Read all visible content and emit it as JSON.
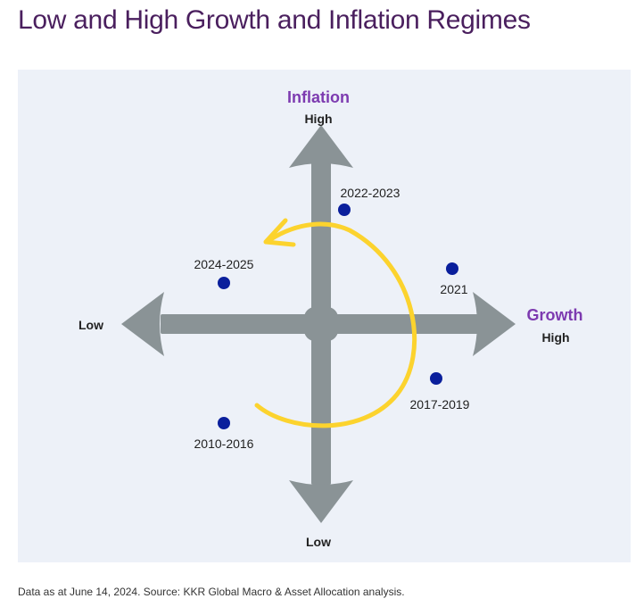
{
  "title": "Low and High Growth and Inflation Regimes",
  "diagram": {
    "y_axis": {
      "name": "Inflation",
      "high_label": "High",
      "low_label": "Low"
    },
    "x_axis": {
      "name": "Growth",
      "high_label": "High",
      "low_label": "Low"
    },
    "periods": [
      {
        "label": "2022-2023",
        "growth": "high",
        "inflation": "high"
      },
      {
        "label": "2021",
        "growth": "high",
        "inflation": "high"
      },
      {
        "label": "2024-2025",
        "growth": "low",
        "inflation": "high"
      },
      {
        "label": "2017-2019",
        "growth": "high",
        "inflation": "low"
      },
      {
        "label": "2010-2016",
        "growth": "low",
        "inflation": "low"
      }
    ],
    "cycle_direction": "counterclockwise"
  },
  "footnote": "Data as at June 14, 2024. Source: KKR Global Macro & Asset Allocation analysis.",
  "colors": {
    "title": "#4a1f5e",
    "panel_background": "#edf1f8",
    "axis_arrow": "#8a9396",
    "axis_name": "#7d3bb0",
    "point": "#0a1f9c",
    "cycle_arrow": "#fcd32e",
    "label_text": "#222222"
  }
}
